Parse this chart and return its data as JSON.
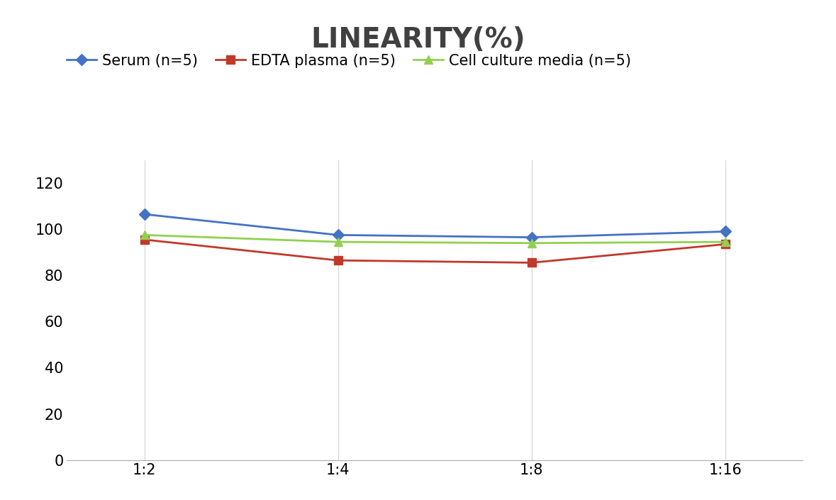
{
  "title": "LINEARITY(%)",
  "title_fontsize": 28,
  "title_fontweight": "bold",
  "title_color": "#404040",
  "x_labels": [
    "1:2",
    "1:4",
    "1:8",
    "1:16"
  ],
  "series": [
    {
      "label": "Serum (n=5)",
      "values": [
        106.5,
        97.5,
        96.5,
        99.0
      ],
      "color": "#4472C4",
      "marker": "D",
      "markersize": 8,
      "linewidth": 2
    },
    {
      "label": "EDTA plasma (n=5)",
      "values": [
        95.5,
        86.5,
        85.5,
        93.5
      ],
      "color": "#C0392B",
      "marker": "s",
      "markersize": 8,
      "linewidth": 2
    },
    {
      "label": "Cell culture media (n=5)",
      "values": [
        97.5,
        94.5,
        94.0,
        94.5
      ],
      "color": "#92D050",
      "marker": "^",
      "markersize": 8,
      "linewidth": 2
    }
  ],
  "ylim": [
    0,
    130
  ],
  "yticks": [
    0,
    20,
    40,
    60,
    80,
    100,
    120
  ],
  "grid_color": "#D9D9D9",
  "background_color": "#FFFFFF",
  "legend_fontsize": 15,
  "tick_fontsize": 15
}
